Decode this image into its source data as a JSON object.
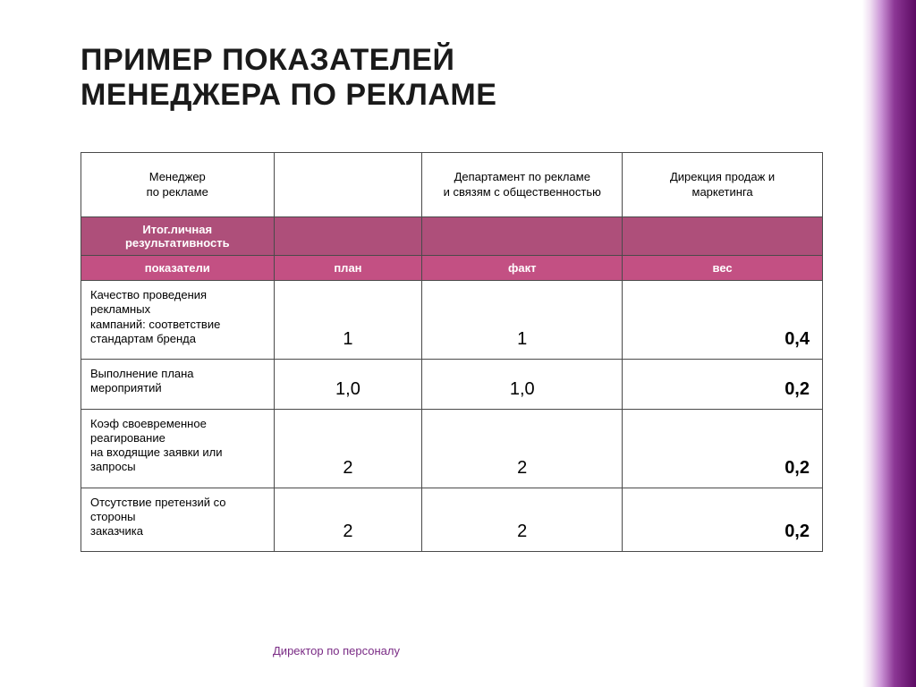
{
  "title_line1": "ПРИМЕР ПОКАЗАТЕЛЕЙ",
  "title_line2": "МЕНЕДЖЕРА ПО РЕКЛАМЕ",
  "footer": "Директор по персоналу",
  "colors": {
    "section_bg": "#ae4f7a",
    "labels_bg": "#c35083",
    "border": "#4a4a4a",
    "footer_text": "#7a2b85",
    "accent_mid": "#a03cb4",
    "accent_dark": "#5c0a63"
  },
  "table": {
    "top_headers": {
      "h1": "Менеджер\nпо рекламе",
      "h2": "",
      "h3": "Департамент по рекламе\nи связям с общественностью",
      "h4": "Дирекция продаж и\nмаркетинга"
    },
    "section_label": "Итог.личная результативность",
    "col_labels": {
      "c1": "показатели",
      "c2": "план",
      "c3": "факт",
      "c4": "вес"
    },
    "rows": [
      {
        "desc": "Качество проведения рекламных\nкампаний: соответствие стандартам бренда",
        "plan": "1",
        "fact": "1",
        "weight": "0,4"
      },
      {
        "desc": "Выполнение плана мероприятий",
        "plan": "1,0",
        "fact": "1,0",
        "weight": "0,2"
      },
      {
        "desc": "Коэф своевременное реагирование\nна входящие заявки или запросы",
        "plan": "2",
        "fact": "2",
        "weight": "0,2"
      },
      {
        "desc": "Отсутствие претензий со стороны\nзаказчика",
        "plan": "2",
        "fact": "2",
        "weight": "0,2"
      }
    ]
  }
}
